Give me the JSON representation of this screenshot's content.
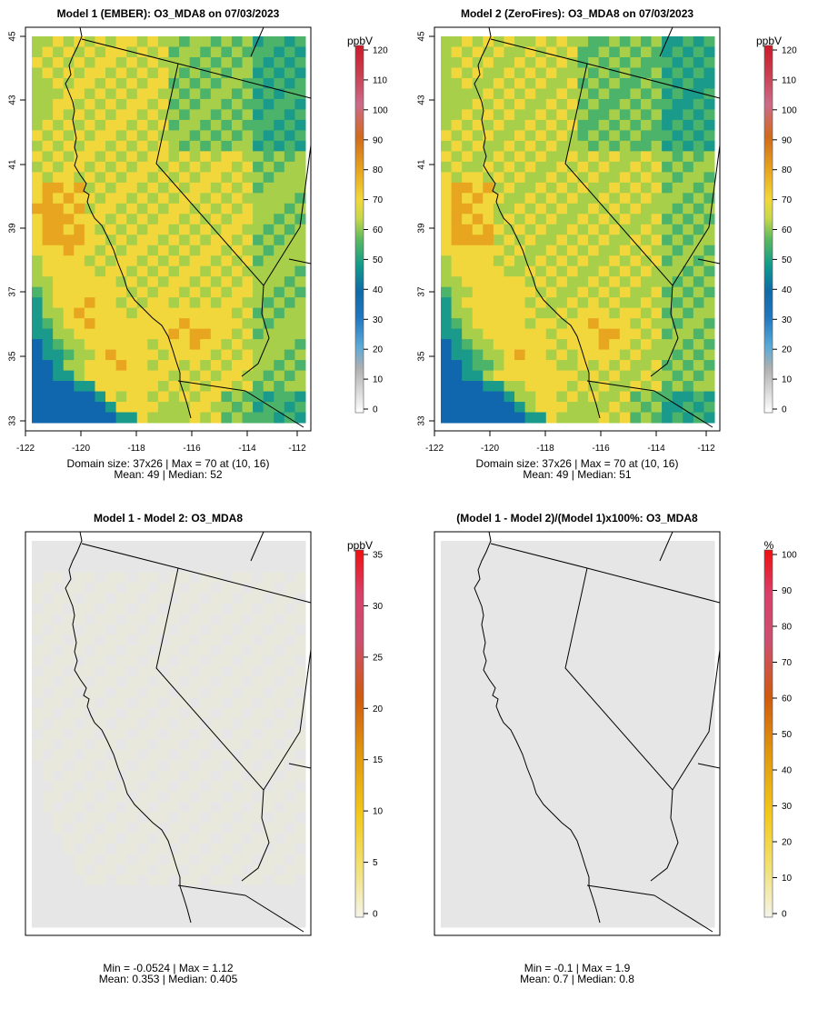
{
  "panels": [
    {
      "title": "Model 1 (EMBER): O3_MDA8 on 07/03/2023",
      "unit": "ppbV",
      "colorbar_ticks": [
        "0",
        "10",
        "20",
        "30",
        "40",
        "50",
        "60",
        "70",
        "80",
        "90",
        "100",
        "110",
        "120"
      ],
      "show_axes": true,
      "y_ticks": [
        "33",
        "35",
        "37",
        "39",
        "41",
        "43",
        "45"
      ],
      "x_ticks": [
        "-122",
        "-120",
        "-118",
        "-116",
        "-114",
        "-112"
      ],
      "stats_line1": "Domain size: 37x26 | Max = 70 at (10, 16)",
      "stats_line2": "Mean: 49 |  Median: 52",
      "field": "model1"
    },
    {
      "title": "Model 2 (ZeroFires): O3_MDA8 on 07/03/2023",
      "unit": "ppbV",
      "colorbar_ticks": [
        "0",
        "10",
        "20",
        "30",
        "40",
        "50",
        "60",
        "70",
        "80",
        "90",
        "100",
        "110",
        "120"
      ],
      "show_axes": true,
      "y_ticks": [
        "33",
        "35",
        "37",
        "39",
        "41",
        "43",
        "45"
      ],
      "x_ticks": [
        "-122",
        "-120",
        "-118",
        "-116",
        "-114",
        "-112"
      ],
      "stats_line1": "Domain size: 37x26 | Max = 70 at (10, 16)",
      "stats_line2": "Mean: 49 |  Median: 51",
      "field": "model2"
    },
    {
      "title": "Model 1 - Model 2: O3_MDA8",
      "unit": "ppbV",
      "colorbar_ticks": [
        "0",
        "5",
        "10",
        "15",
        "20",
        "25",
        "30",
        "35"
      ],
      "show_axes": false,
      "y_ticks": [],
      "x_ticks": [],
      "stats_line1": "Min = -0.0524 | Max = 1.12",
      "stats_line2": "Mean: 0.353 |  Median: 0.405",
      "field": "diff"
    },
    {
      "title": "(Model 1 - Model 2)/(Model 1)x100%: O3_MDA8",
      "unit": "%",
      "colorbar_ticks": [
        "0",
        "10",
        "20",
        "30",
        "40",
        "50",
        "60",
        "70",
        "80",
        "90",
        "100"
      ],
      "show_axes": false,
      "y_ticks": [],
      "x_ticks": [],
      "stats_line1": "Min = -0.1 | Max = 1.9",
      "stats_line2": "Mean: 0.7 |  Median: 0.8",
      "field": "pct"
    }
  ],
  "colors": {
    "ocean_blue": "#1f77c0",
    "deep_blue": "#1167ad",
    "teal": "#1a9a8a",
    "green": "#4cb36a",
    "yellow_green": "#a8cf4a",
    "yellow": "#f2d73c",
    "orange": "#e8a51f",
    "diff_bg": "#e6e6e6",
    "diff_tint": "#e8e8dc"
  }
}
